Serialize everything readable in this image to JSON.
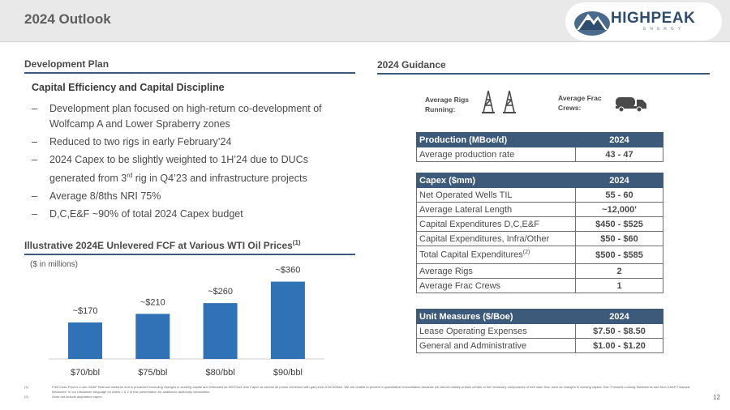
{
  "header": {
    "title": "2024 Outlook",
    "logo": {
      "name": "HIGHPEAK",
      "sub": "ENERGY"
    }
  },
  "development_plan": {
    "heading": "Development Plan",
    "subheading": "Capital Efficiency and Capital Discipline",
    "bullets": [
      {
        "dash": "–",
        "text": "Development plan focused on high-return co-development of Wolfcamp A and Lower Spraberry zones"
      },
      {
        "dash": "–",
        "text": "Reduced to two rigs in early February’24"
      },
      {
        "dash": "–",
        "pre": "2024 Capex to be slightly weighted to 1H’24 due to DUCs generated from 3",
        "sup": "rd",
        "post": " rig in Q4’23 and infrastructure projects"
      },
      {
        "dash": "–",
        "text": "Average 8/8ths NRI 75%"
      },
      {
        "dash": "–",
        "text": "D,C,E&F ~90% of total 2024 Capex budget"
      }
    ]
  },
  "fcf": {
    "heading": "Illustrative 2024E Unlevered FCF at Various  WTI Oil Prices",
    "heading_sup": "(1)",
    "note": "($ in millions)"
  },
  "chart_data": {
    "type": "bar",
    "categories": [
      "$70/bbl",
      "$75/bbl",
      "$80/bbl",
      "$90/bbl"
    ],
    "values": [
      170,
      210,
      260,
      360
    ],
    "data_labels": [
      "~$170",
      "~$210",
      "~$260",
      "~$360"
    ],
    "ylim": [
      0,
      400
    ],
    "grid": false,
    "color": "#2f73b6"
  },
  "guidance": {
    "heading": "2024 Guidance",
    "rigs_label_1": "Average Rigs",
    "rigs_label_2": "Running:",
    "frac_label_1": "Average Frac",
    "frac_label_2": "Crews:",
    "icons": {
      "rigs": "oil-rig-icon",
      "frac": "frac-truck-icon"
    },
    "production": {
      "header": [
        "Production (MBoe/d)",
        "2024"
      ],
      "rows": [
        [
          "Average production rate",
          "43 - 47"
        ]
      ]
    },
    "capex": {
      "header": [
        "Capex ($mm)",
        "2024"
      ],
      "rows": [
        [
          "Net Operated Wells TIL",
          "55 - 60"
        ],
        [
          "Average Lateral Length",
          "~12,000'"
        ],
        [
          "Capital Expenditures D,C,E&F",
          "$450 - $525"
        ],
        [
          "Capital Expenditures, Infra/Other",
          "$50 - $60"
        ],
        [
          "Total Capital Expenditures",
          "$500 - $585"
        ],
        [
          "Average Rigs",
          "2"
        ],
        [
          "Average Frac Crews",
          "1"
        ]
      ],
      "total_sup": "(2)"
    },
    "unit": {
      "header": [
        "Unit Measures ($/Boe)",
        "2024"
      ],
      "rows": [
        [
          "Lease Operating Expenses",
          "$7.50 - $8.50"
        ],
        [
          "General and Administrative",
          "$1.00 - $1.20"
        ]
      ]
    }
  },
  "footnotes": {
    "fn1_mark": "(1)",
    "fn1": "Free Cash Flow is a non-GAAP financial measure and is presented excluding changes in working capital and estimated as EBITDAX less Capex at various oil prices combined with gas price of $2.50/Mcf. We are unable to present a quantitative reconciliation because we cannot reliably predict certain of the necessary components of free cash flow, such as changes in working capital. See “Forward-Looking Statements and Non-GAAP Financial Measures” in our Disclaimer language on slides 1 & 2 of this presentation for additional cautionary information.",
    "fn2_mark": "(2)",
    "fn2": "Does not include acquisition capex.",
    "page": "12"
  },
  "colors": {
    "navy": "#3e5a7a",
    "bar": "#2f73b6",
    "topbar": "#e9e9e9"
  }
}
